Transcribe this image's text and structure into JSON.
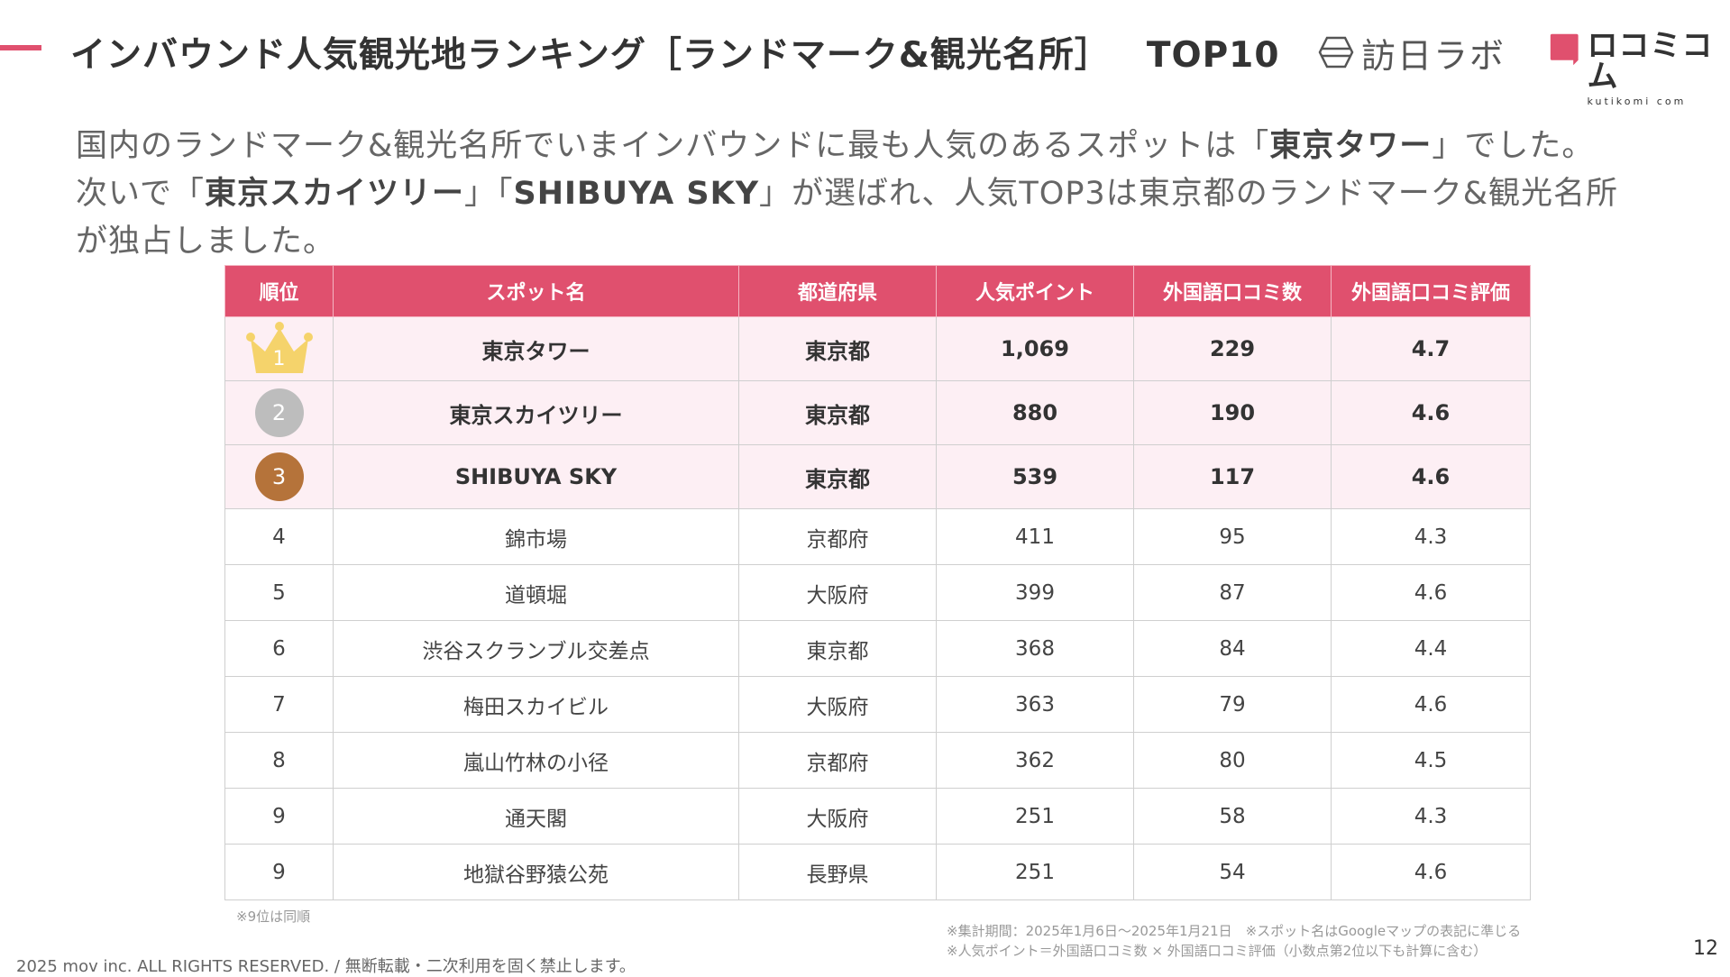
{
  "header": {
    "title": "インバウンド人気観光地ランキング［ランドマーク&観光名所］",
    "title_suffix": "TOP10",
    "brand_logo_text": "訪日ラボ",
    "brand2_name": "ロコミコム",
    "brand2_sub": "kutikomi com"
  },
  "intro": {
    "line1_pre": "国内のランドマーク&観光名所でいまインバウンドに最も人気のあるスポットは「",
    "line1_bold": "東京タワー",
    "line1_post": "」でした。",
    "line2_pre": "次いで「",
    "line2_bold1": "東京スカイツリー",
    "line2_mid": "」「",
    "line2_bold2": "SHIBUYA SKY",
    "line2_post": "」が選ばれ、人気TOP3は東京都のランドマーク&観光名所",
    "line3": "が独占しました。"
  },
  "table": {
    "headers": [
      "順位",
      "スポット名",
      "都道府県",
      "人気ポイント",
      "外国語口コミ数",
      "外国語口コミ評価"
    ],
    "rows": [
      {
        "rank": "1",
        "spot": "東京タワー",
        "pref": "東京都",
        "points": "1,069",
        "reviews": "229",
        "rating": "4.7"
      },
      {
        "rank": "2",
        "spot": "東京スカイツリー",
        "pref": "東京都",
        "points": "880",
        "reviews": "190",
        "rating": "4.6"
      },
      {
        "rank": "3",
        "spot": "SHIBUYA SKY",
        "pref": "東京都",
        "points": "539",
        "reviews": "117",
        "rating": "4.6"
      },
      {
        "rank": "4",
        "spot": "錦市場",
        "pref": "京都府",
        "points": "411",
        "reviews": "95",
        "rating": "4.3"
      },
      {
        "rank": "5",
        "spot": "道頓堀",
        "pref": "大阪府",
        "points": "399",
        "reviews": "87",
        "rating": "4.6"
      },
      {
        "rank": "6",
        "spot": "渋谷スクランブル交差点",
        "pref": "東京都",
        "points": "368",
        "reviews": "84",
        "rating": "4.4"
      },
      {
        "rank": "7",
        "spot": "梅田スカイビル",
        "pref": "大阪府",
        "points": "363",
        "reviews": "79",
        "rating": "4.6"
      },
      {
        "rank": "8",
        "spot": "嵐山竹林の小径",
        "pref": "京都府",
        "points": "362",
        "reviews": "80",
        "rating": "4.5"
      },
      {
        "rank": "9",
        "spot": "通天閣",
        "pref": "大阪府",
        "points": "251",
        "reviews": "58",
        "rating": "4.3"
      },
      {
        "rank": "9",
        "spot": "地獄谷野猿公苑",
        "pref": "長野県",
        "points": "251",
        "reviews": "54",
        "rating": "4.6"
      }
    ]
  },
  "notes": {
    "tie": "※9位は同順",
    "period": "※集計期間：2025年1月6日〜2025年1月21日　※スポット名はGoogleマップの表記に準じる",
    "formula": "※人気ポイント＝外国語口コミ数 × 外国語口コミ評価（小数点第2位以下も計算に含む）"
  },
  "footer": {
    "copyright": "2025 mov inc. ALL RIGHTS RESERVED. / 無断転載・二次利用を固く禁止します。",
    "page": "12"
  },
  "colors": {
    "accent": "#e0506e",
    "top_row_bg": "#fdeff4",
    "gold": "#f5d36b",
    "silver": "#bdbdbd",
    "bronze": "#b5733a"
  }
}
